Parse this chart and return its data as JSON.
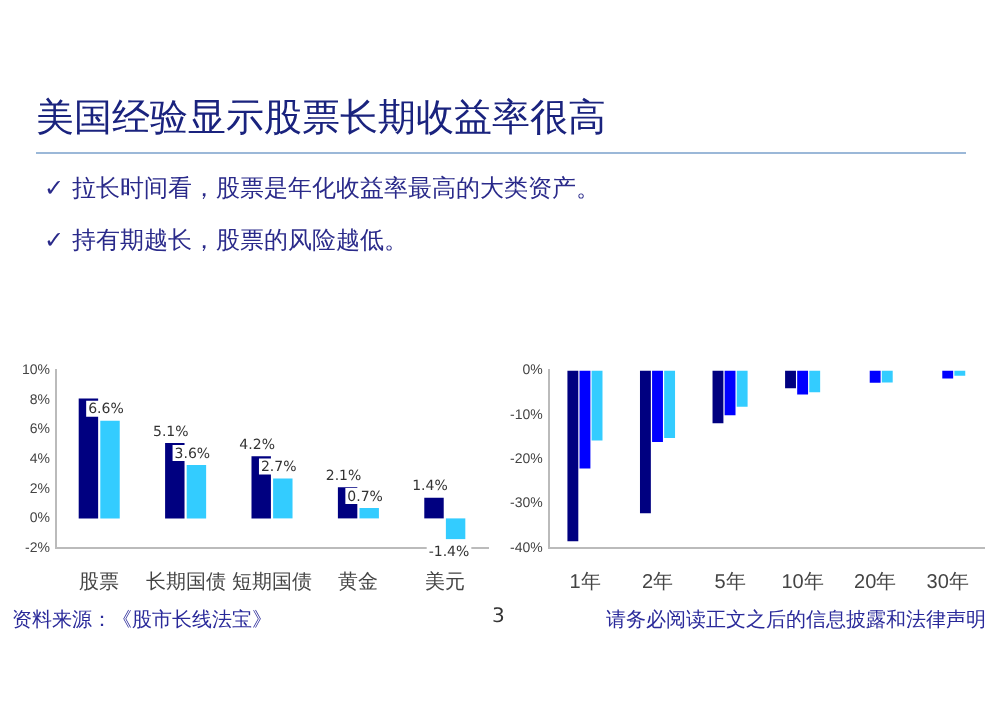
{
  "chart_data": [
    {
      "type": "bar",
      "title": "美国经验显示股票长期收益率很高",
      "annotations": [
        "✓ 拉长时间看，股票是年化收益率最高的大类资产。",
        "✓ 持有期越长，股票的风险越低。"
      ],
      "categories": [
        "股票",
        "长期国债",
        "短期国债",
        "黄金",
        "美元"
      ],
      "series": [
        {
          "color": "#000080",
          "values": [
            8.1,
            5.1,
            4.2,
            2.1,
            1.4
          ],
          "value_labels": [
            null,
            "5.1%",
            "4.2%",
            "2.1%",
            "1.4%"
          ]
        },
        {
          "color": "#33ccff",
          "values": [
            6.6,
            3.6,
            2.7,
            0.7,
            -1.4
          ],
          "value_labels": [
            "6.6%",
            "3.6%",
            "2.7%",
            "0.7%",
            "-1.4%"
          ]
        }
      ],
      "ylim": [
        -2,
        10
      ],
      "yticks": [
        {
          "value": -2,
          "label": "-2%"
        },
        {
          "value": 0,
          "label": "0%"
        },
        {
          "value": 2,
          "label": "2%"
        },
        {
          "value": 4,
          "label": "4%"
        },
        {
          "value": 6,
          "label": "6%"
        },
        {
          "value": 8,
          "label": "8%"
        },
        {
          "value": 10,
          "label": "10%"
        }
      ],
      "grid": false,
      "legend": false
    },
    {
      "type": "bar",
      "annotations": [
        "资料来源：《股市长线法宝》",
        "3",
        "请务必阅读正文之后的信息披露和法律声明"
      ],
      "categories": [
        "1年",
        "2年",
        "5年",
        "10年",
        "20年",
        "30年"
      ],
      "series": [
        {
          "color": "#000080",
          "values": [
            -38.5,
            -32.2,
            -11.9,
            -4.0,
            null,
            null
          ]
        },
        {
          "color": "#0000ff",
          "values": [
            -22.1,
            -16.1,
            -10.1,
            -5.4,
            -2.8,
            -1.8
          ]
        },
        {
          "color": "#33ccff",
          "values": [
            -15.8,
            -15.2,
            -8.2,
            -4.9,
            -2.7,
            -1.2
          ]
        }
      ],
      "ylim": [
        -40,
        0
      ],
      "yticks": [
        {
          "value": -40,
          "label": "-40%"
        },
        {
          "value": -30,
          "label": "-30%"
        },
        {
          "value": -20,
          "label": "-20%"
        },
        {
          "value": -10,
          "label": "-10%"
        },
        {
          "value": 0,
          "label": "0%"
        }
      ],
      "grid": false,
      "legend": false
    }
  ]
}
